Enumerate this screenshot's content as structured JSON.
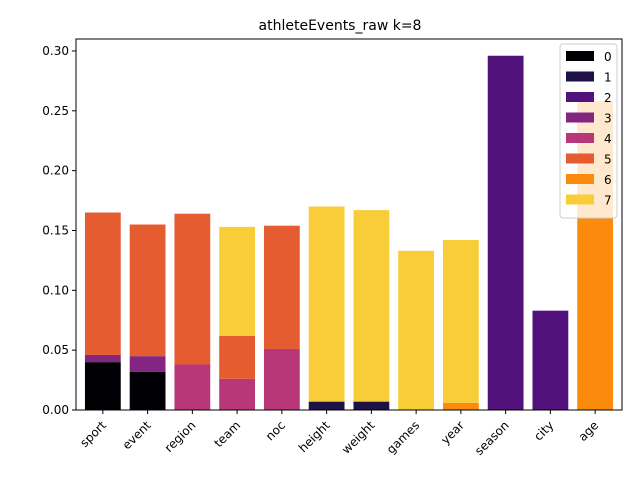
{
  "chart_data": {
    "type": "bar",
    "stacked": true,
    "title": "athleteEvents_raw k=8",
    "xlabel": "",
    "ylabel": "",
    "categories": [
      "sport",
      "event",
      "region",
      "team",
      "noc",
      "height",
      "weight",
      "games",
      "year",
      "season",
      "city",
      "age"
    ],
    "ylim": [
      0,
      0.31
    ],
    "yticks": [
      0.0,
      0.05,
      0.1,
      0.15,
      0.2,
      0.25,
      0.3
    ],
    "ytick_labels": [
      "0.00",
      "0.05",
      "0.10",
      "0.15",
      "0.20",
      "0.25",
      "0.30"
    ],
    "grid": false,
    "legend_position": "top-right",
    "series": [
      {
        "name": "0",
        "color": "#000004",
        "values": [
          0.04,
          0.032,
          0,
          0,
          0,
          0,
          0,
          0,
          0,
          0,
          0,
          0
        ]
      },
      {
        "name": "1",
        "color": "#1d1147",
        "values": [
          0,
          0,
          0,
          0,
          0,
          0.007,
          0.007,
          0,
          0,
          0,
          0,
          0
        ]
      },
      {
        "name": "2",
        "color": "#51127c",
        "values": [
          0,
          0,
          0,
          0,
          0,
          0,
          0,
          0,
          0,
          0.296,
          0.083,
          0
        ]
      },
      {
        "name": "3",
        "color": "#832681",
        "values": [
          0.006,
          0.013,
          0,
          0,
          0,
          0,
          0,
          0,
          0,
          0,
          0,
          0
        ]
      },
      {
        "name": "4",
        "color": "#b73779",
        "values": [
          0,
          0,
          0.038,
          0.026,
          0.051,
          0,
          0,
          0,
          0,
          0,
          0,
          0
        ]
      },
      {
        "name": "5",
        "color": "#e55c30",
        "values": [
          0.119,
          0.11,
          0.126,
          0.036,
          0.103,
          0,
          0,
          0,
          0,
          0,
          0,
          0
        ]
      },
      {
        "name": "6",
        "color": "#fb8b0c",
        "values": [
          0,
          0,
          0,
          0,
          0,
          0,
          0,
          0,
          0.006,
          0,
          0,
          0.258
        ]
      },
      {
        "name": "7",
        "color": "#f8cd37",
        "values": [
          0,
          0,
          0,
          0.091,
          0,
          0.163,
          0.16,
          0.133,
          0.136,
          0,
          0,
          0
        ]
      }
    ]
  }
}
